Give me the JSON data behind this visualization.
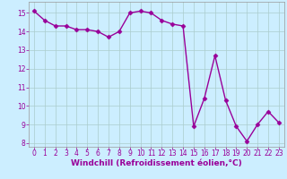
{
  "x": [
    0,
    1,
    2,
    3,
    4,
    5,
    6,
    7,
    8,
    9,
    10,
    11,
    12,
    13,
    14,
    15,
    16,
    17,
    18,
    19,
    20,
    21,
    22,
    23
  ],
  "y": [
    15.1,
    14.6,
    14.3,
    14.3,
    14.1,
    14.1,
    14.0,
    13.7,
    14.0,
    15.0,
    15.1,
    15.0,
    14.6,
    14.4,
    14.3,
    8.9,
    10.4,
    12.7,
    10.3,
    8.9,
    8.1,
    9.0,
    9.7,
    9.1
  ],
  "line_color": "#990099",
  "marker": "D",
  "markersize": 2.5,
  "linewidth": 1.0,
  "bg_color": "#cceeff",
  "grid_color": "#aacccc",
  "xlabel": "Windchill (Refroidissement éolien,°C)",
  "xlabel_fontsize": 6.5,
  "xlim": [
    -0.5,
    23.5
  ],
  "ylim": [
    7.8,
    15.6
  ],
  "yticks": [
    8,
    9,
    10,
    11,
    12,
    13,
    14,
    15
  ],
  "xticks": [
    0,
    1,
    2,
    3,
    4,
    5,
    6,
    7,
    8,
    9,
    10,
    11,
    12,
    13,
    14,
    15,
    16,
    17,
    18,
    19,
    20,
    21,
    22,
    23
  ],
  "tick_fontsize": 5.5,
  "spine_color": "#999999"
}
